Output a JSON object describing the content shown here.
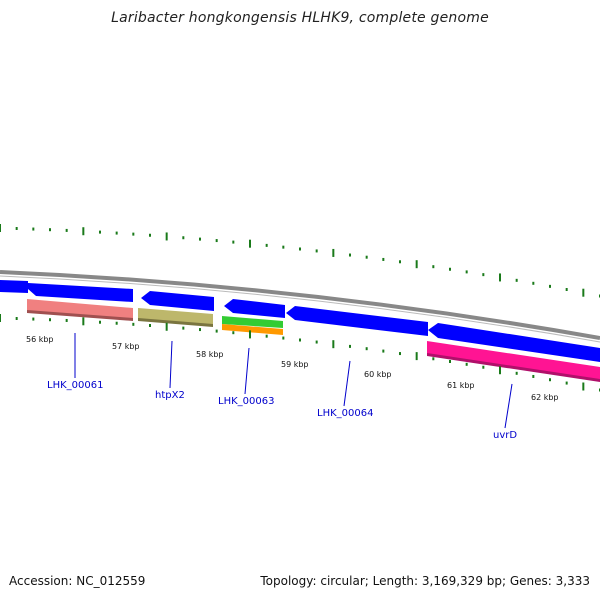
{
  "title": "Laribacter hongkongensis HLHK9, complete genome",
  "footer": {
    "accession": "Accession: NC_012559",
    "summary": "Topology: circular; Length: 3,169,329 bp; Genes: 3,333"
  },
  "colors": {
    "backbone": "#888888",
    "cds": "#0000ff",
    "tick": "#1a7a1a",
    "gene_label": "#0000cc",
    "rRNA_a": "#f08080",
    "rRNA_b": "#bdb76b",
    "tRNA_green": "#33cc33",
    "tRNA_orange": "#ff9900",
    "uvrD": "#ff1493"
  },
  "kbp_labels": [
    "56 kbp",
    "57 kbp",
    "58 kbp",
    "59 kbp",
    "60 kbp",
    "61 kbp",
    "62 kbp"
  ],
  "genes": [
    {
      "id": "LHK_00061",
      "label": "LHK_00061"
    },
    {
      "id": "htpX2",
      "label": "htpX2"
    },
    {
      "id": "LHK_00063",
      "label": "LHK_00063"
    },
    {
      "id": "LHK_00064",
      "label": "LHK_00064"
    },
    {
      "id": "uvrD",
      "label": "uvrD"
    }
  ]
}
